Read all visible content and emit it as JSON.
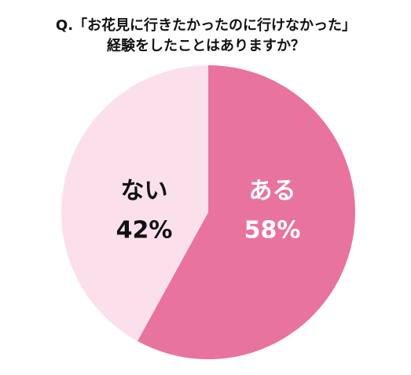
{
  "chart_data": {
    "type": "pie",
    "title": [
      "Q.「お花見に行きたかったのに行けなかった」",
      "経験をしたことはありますか？"
    ],
    "categories": [
      "ある",
      "ない"
    ],
    "values": [
      58,
      42
    ],
    "value_labels": [
      "58%",
      "42%"
    ],
    "colors": [
      "#e8739f",
      "#fbe0ec"
    ],
    "label_colors": [
      "#ffffff",
      "#111111"
    ]
  }
}
